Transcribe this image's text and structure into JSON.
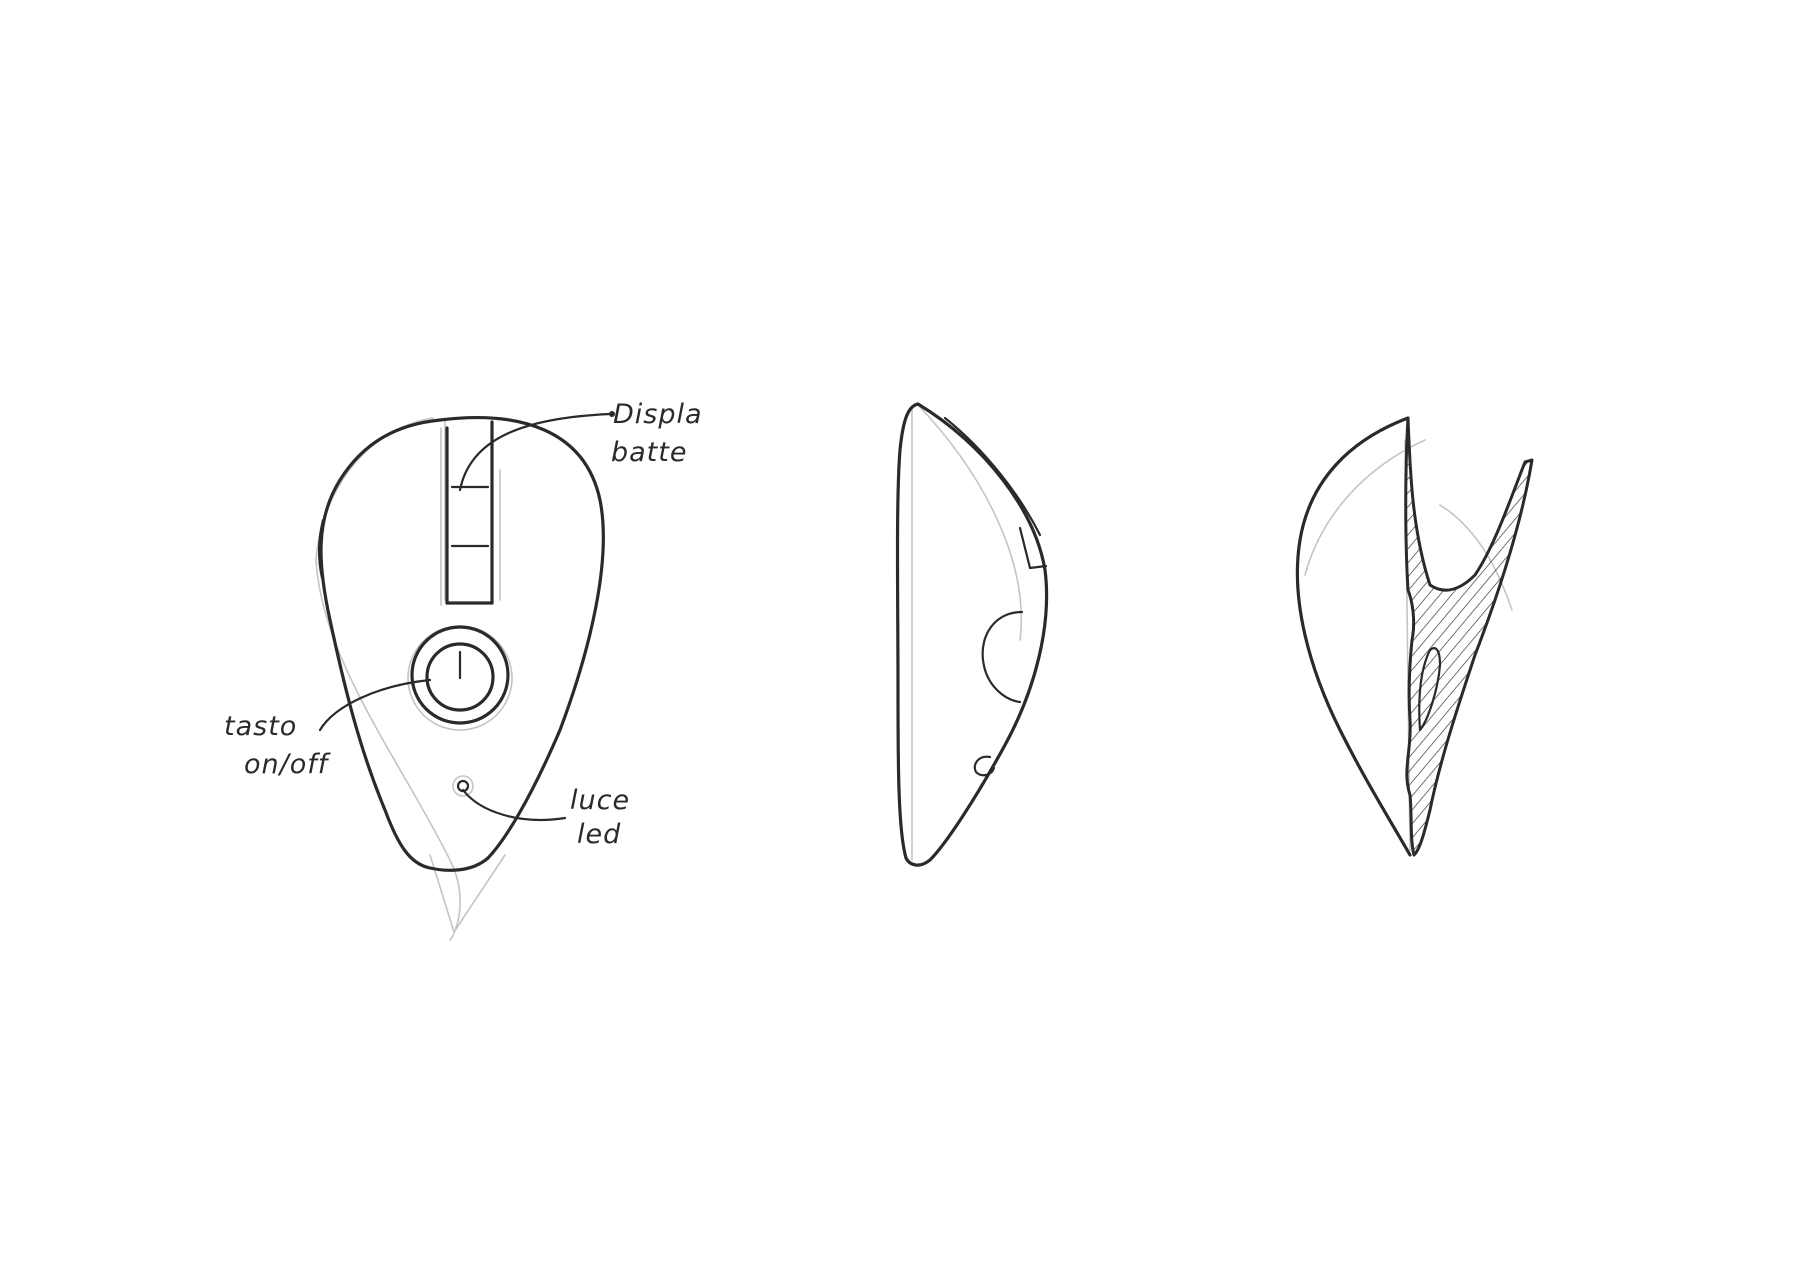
{
  "annotations": {
    "display_line1": "Displa",
    "display_line2": "batte",
    "button_line1": "tasto",
    "button_line2": "on/off",
    "led_line1": "luce",
    "led_line2": "led"
  }
}
